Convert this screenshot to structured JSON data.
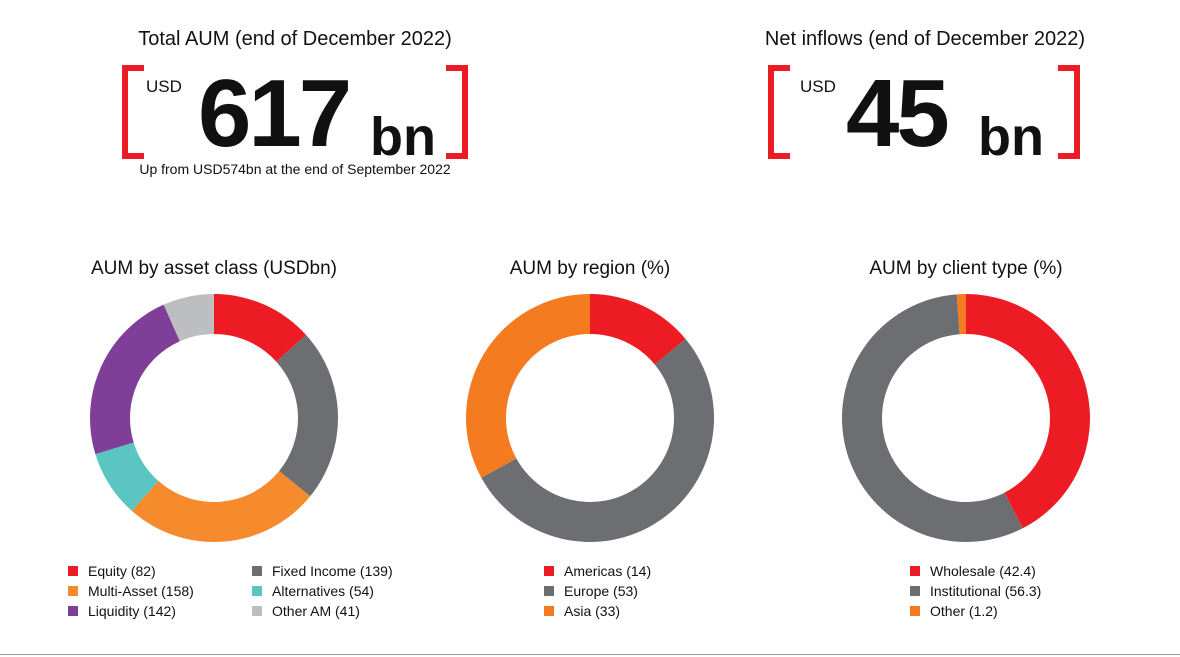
{
  "kpis": [
    {
      "title": "Total AUM (end of December 2022)",
      "currency": "USD",
      "value": "617",
      "unit": "bn",
      "note": "Up from USD574bn at the end of September 2022"
    },
    {
      "title": "Net inflows (end of December 2022)",
      "currency": "USD",
      "value": "45",
      "unit": "bn",
      "note": ""
    }
  ],
  "chart_data": [
    {
      "type": "pie",
      "donut": true,
      "title": "AUM by asset class (USDbn)",
      "categories": [
        "Equity",
        "Fixed Income",
        "Multi-Asset",
        "Alternatives",
        "Liquidity",
        "Other AM"
      ],
      "values": [
        82,
        139,
        158,
        54,
        142,
        41
      ],
      "colors": [
        "#ed1c24",
        "#6d6e71",
        "#f68b2e",
        "#5bc5c1",
        "#7f3f98",
        "#bcbec0"
      ],
      "legend_labels": [
        "Equity (82)",
        "Fixed Income (139)",
        "Multi-Asset (158)",
        "Alternatives (54)",
        "Liquidity (142)",
        "Other AM (41)"
      ]
    },
    {
      "type": "pie",
      "donut": true,
      "title": "AUM by region (%)",
      "categories": [
        "Americas",
        "Europe",
        "Asia"
      ],
      "values": [
        14,
        53,
        33
      ],
      "colors": [
        "#ed1c24",
        "#6d6e71",
        "#f47b20"
      ],
      "legend_labels": [
        "Americas (14)",
        "Europe (53)",
        "Asia (33)"
      ]
    },
    {
      "type": "pie",
      "donut": true,
      "title": "AUM by client type (%)",
      "categories": [
        "Wholesale",
        "Institutional",
        "Other"
      ],
      "values": [
        42.4,
        56.3,
        1.2
      ],
      "colors": [
        "#ed1c24",
        "#6d6e71",
        "#f47b20"
      ],
      "legend_labels": [
        "Wholesale (42.4)",
        "Institutional (56.3)",
        "Other (1.2)"
      ]
    }
  ]
}
